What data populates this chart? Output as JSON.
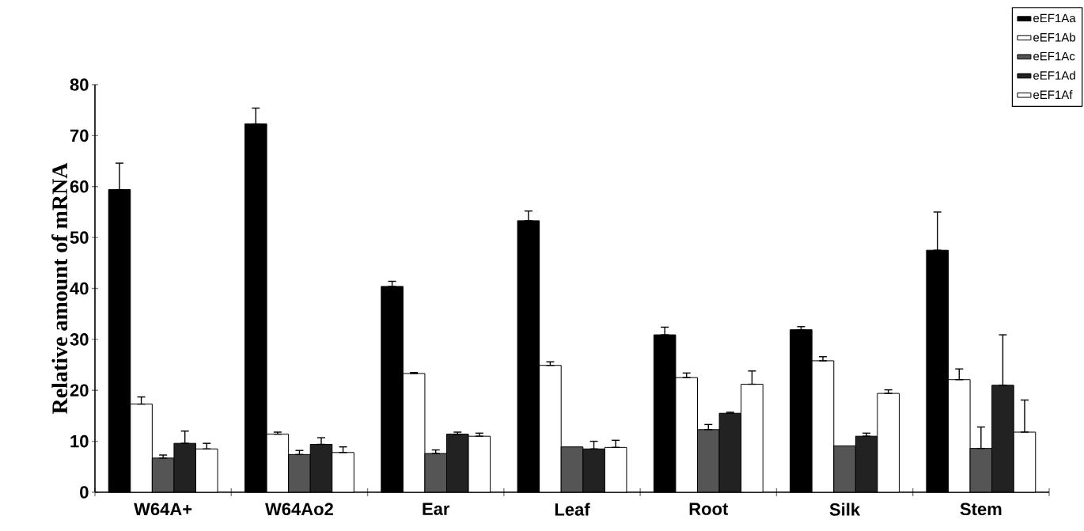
{
  "chart_data": {
    "type": "bar",
    "ylabel": "Relative amount of mRNA",
    "categories": [
      "W64A+",
      "W64Ao2",
      "Ear",
      "Leaf",
      "Root",
      "Silk",
      "Stem"
    ],
    "series": [
      {
        "name": "eEF1Aa",
        "color": "#000000",
        "values": [
          59.4,
          72.3,
          40.4,
          53.3,
          30.9,
          31.9,
          47.5
        ],
        "errors": [
          [
            59.4,
            64.6
          ],
          [
            72.3,
            75.4
          ],
          [
            40.4,
            41.4
          ],
          [
            53.3,
            55.2
          ],
          [
            30.9,
            32.4
          ],
          [
            31.9,
            32.5
          ],
          [
            47.5,
            55.0
          ]
        ]
      },
      {
        "name": "eEF1Ab",
        "color": "#ffffff",
        "values": [
          17.3,
          11.4,
          23.3,
          24.9,
          22.5,
          25.8,
          22.1
        ],
        "errors": [
          [
            17.3,
            18.7
          ],
          [
            11.4,
            11.8
          ],
          [
            23.3,
            23.5
          ],
          [
            24.9,
            25.6
          ],
          [
            22.5,
            23.4
          ],
          [
            25.8,
            26.6
          ],
          [
            22.1,
            24.2
          ]
        ]
      },
      {
        "name": "eEF1Ac",
        "color": "#555555",
        "values": [
          6.7,
          7.4,
          7.6,
          8.9,
          12.3,
          9.1,
          8.6
        ],
        "errors": [
          [
            6.7,
            7.3
          ],
          [
            7.4,
            8.2
          ],
          [
            7.6,
            8.3
          ],
          null,
          [
            12.3,
            13.3
          ],
          null,
          [
            8.6,
            12.8
          ]
        ]
      },
      {
        "name": "eEF1Ad",
        "color": "#222222",
        "values": [
          9.6,
          9.4,
          11.4,
          8.5,
          15.5,
          11.0,
          21.0
        ],
        "errors": [
          [
            9.6,
            12.0
          ],
          [
            9.4,
            10.7
          ],
          [
            11.4,
            11.8
          ],
          [
            8.5,
            10.0
          ],
          [
            15.5,
            15.7
          ],
          [
            11.0,
            11.6
          ],
          [
            21.0,
            30.9
          ]
        ]
      },
      {
        "name": "eEF1Af",
        "color": "#ffffff",
        "values": [
          8.5,
          7.8,
          11.0,
          8.8,
          21.2,
          19.4,
          11.8
        ],
        "errors": [
          [
            8.5,
            9.6
          ],
          [
            7.8,
            8.9
          ],
          [
            11.0,
            11.6
          ],
          [
            8.8,
            10.2
          ],
          [
            21.2,
            23.8
          ],
          [
            19.4,
            20.1
          ],
          [
            11.8,
            18.1
          ]
        ]
      }
    ],
    "ylim": [
      0,
      80
    ],
    "yticks": [
      0,
      10,
      20,
      30,
      40,
      50,
      60,
      70,
      80
    ],
    "grid": false,
    "legend": "top right"
  }
}
